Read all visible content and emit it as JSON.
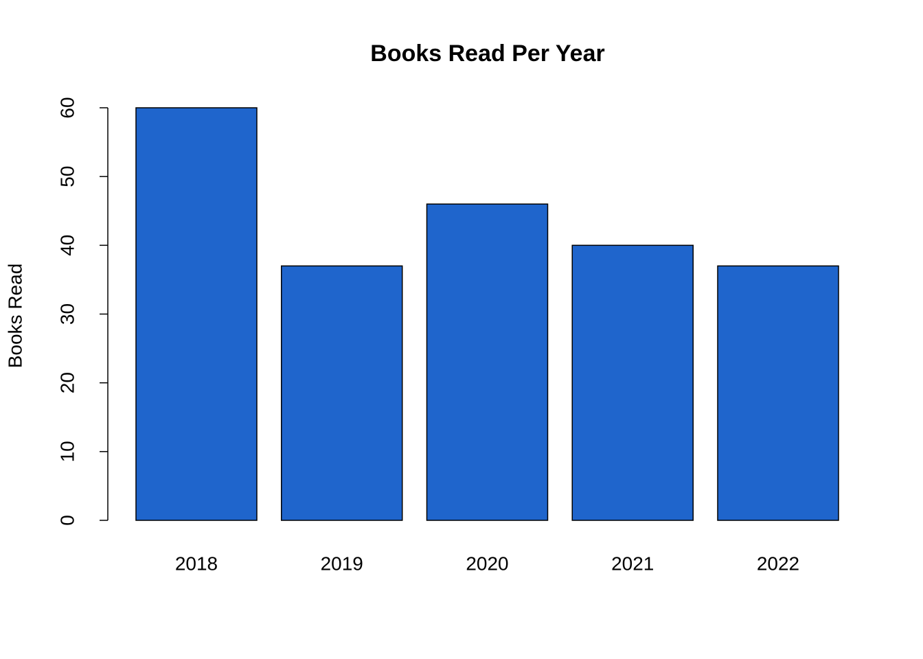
{
  "chart_data": {
    "type": "bar",
    "title": "Books Read Per Year",
    "y_label": "Books Read",
    "categories": [
      "2018",
      "2019",
      "2020",
      "2021",
      "2022"
    ],
    "values": [
      60,
      37,
      46,
      40,
      37
    ],
    "color": "#1f65cc",
    "ylim": [
      0,
      60
    ],
    "yticks": [
      0,
      10,
      20,
      30,
      40,
      50,
      60
    ]
  }
}
